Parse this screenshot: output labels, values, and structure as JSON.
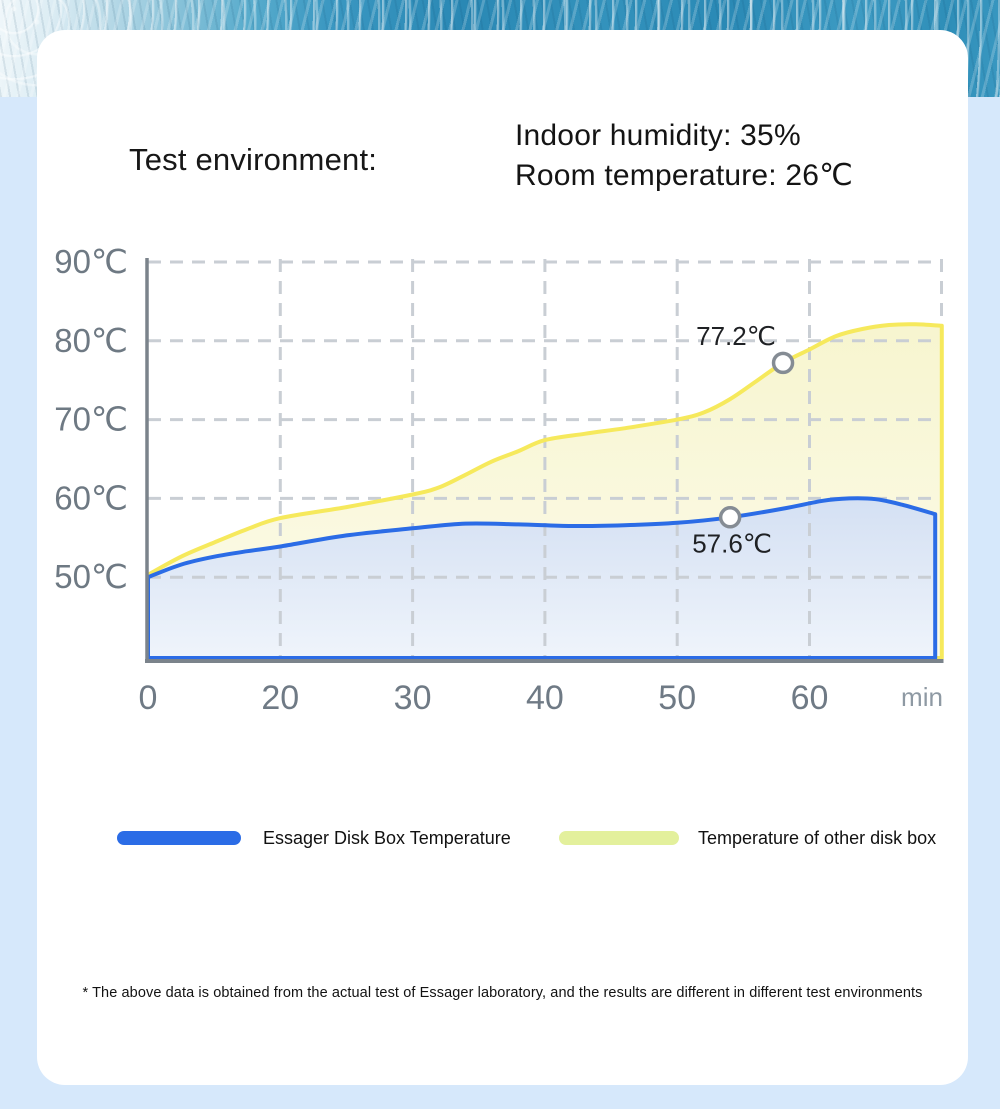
{
  "page": {
    "background_color": "#d6e8fb",
    "card_color": "#ffffff"
  },
  "hero_image": {
    "name": "ice-water-texture-banner"
  },
  "header": {
    "title": "Test environment:",
    "info_lines": [
      "Indoor humidity: 35%",
      "Room temperature: 26℃"
    ]
  },
  "chart_data": {
    "type": "area",
    "title": "",
    "xlabel_unit": "min",
    "x_tick_labels": [
      "0",
      "20",
      "30",
      "40",
      "50",
      "60"
    ],
    "x_tick_minutes": [
      0,
      20,
      30,
      40,
      50,
      60
    ],
    "x_axis_note": "non-linear scale: ticks evenly spaced, first interval 20 min then 10 min",
    "y_tick_labels": [
      "90℃",
      "80℃",
      "70℃",
      "60℃",
      "50℃"
    ],
    "y_tick_values": [
      90,
      80,
      70,
      60,
      50
    ],
    "ylim_displayed": [
      50,
      90
    ],
    "grid": "dashed",
    "legend_position": "bottom",
    "series": [
      {
        "id": "other",
        "name": "Temperature of other disk box",
        "line_color": "#f6e95c",
        "fill_top": "#f7f5cf",
        "fill_bottom": "#fcfbea",
        "points_min_temp": [
          [
            0,
            50.3
          ],
          [
            5,
            52.6
          ],
          [
            10,
            54.4
          ],
          [
            15,
            56.1
          ],
          [
            20,
            57.5
          ],
          [
            25,
            58.9
          ],
          [
            30,
            60.5
          ],
          [
            32,
            61.4
          ],
          [
            34,
            63.0
          ],
          [
            36,
            64.7
          ],
          [
            38,
            66.0
          ],
          [
            40,
            67.4
          ],
          [
            43,
            68.2
          ],
          [
            46,
            68.9
          ],
          [
            50,
            70.0
          ],
          [
            52,
            70.9
          ],
          [
            54,
            72.6
          ],
          [
            56,
            74.9
          ],
          [
            58,
            77.2
          ],
          [
            60,
            78.9
          ],
          [
            62,
            80.6
          ],
          [
            64,
            81.5
          ],
          [
            66,
            82.0
          ],
          [
            68,
            82.1
          ],
          [
            70,
            81.9
          ]
        ]
      },
      {
        "id": "essager",
        "name": "Essager Disk Box Temperature",
        "line_color": "#2b6ce6",
        "fill_top": "#d4e0f3",
        "fill_bottom": "#eff4fb",
        "points_min_temp": [
          [
            0,
            50
          ],
          [
            5,
            51.6
          ],
          [
            10,
            52.6
          ],
          [
            15,
            53.3
          ],
          [
            20,
            53.9
          ],
          [
            25,
            55.3
          ],
          [
            30,
            56.2
          ],
          [
            34,
            56.8
          ],
          [
            38,
            56.7
          ],
          [
            42,
            56.5
          ],
          [
            46,
            56.6
          ],
          [
            50,
            56.9
          ],
          [
            54,
            57.6
          ],
          [
            58,
            58.7
          ],
          [
            61,
            59.7
          ],
          [
            63,
            60.0
          ],
          [
            65,
            59.9
          ],
          [
            67,
            59.2
          ],
          [
            69.5,
            58.0
          ]
        ]
      }
    ],
    "annotations": [
      {
        "label": "77.2℃",
        "minute": 58,
        "temp": 77.2,
        "label_offset": [
          -47,
          -27
        ]
      },
      {
        "label": "57.6℃",
        "minute": 54,
        "temp": 57.6,
        "label_offset": [
          2,
          26
        ]
      }
    ],
    "style": {
      "gridline_color": "#c9ced4",
      "axis_color": "#7b838b",
      "y_label_color": "#6e7983",
      "x_label_color": "#6f7a85",
      "unit_label_color": "#8e99a3",
      "annotation_text_color": "#1f2124",
      "marker_stroke_color": "#858c94"
    }
  },
  "legend": {
    "items": [
      {
        "id": "essager",
        "label": "Essager Disk Box Temperature",
        "swatch_color": "#2b6ce6"
      },
      {
        "id": "other",
        "label": "Temperature of other disk box",
        "swatch_color": "#e3f09c"
      }
    ]
  },
  "footnote": "* The above data is obtained from the actual test of Essager laboratory, and the results are different in different test environments"
}
